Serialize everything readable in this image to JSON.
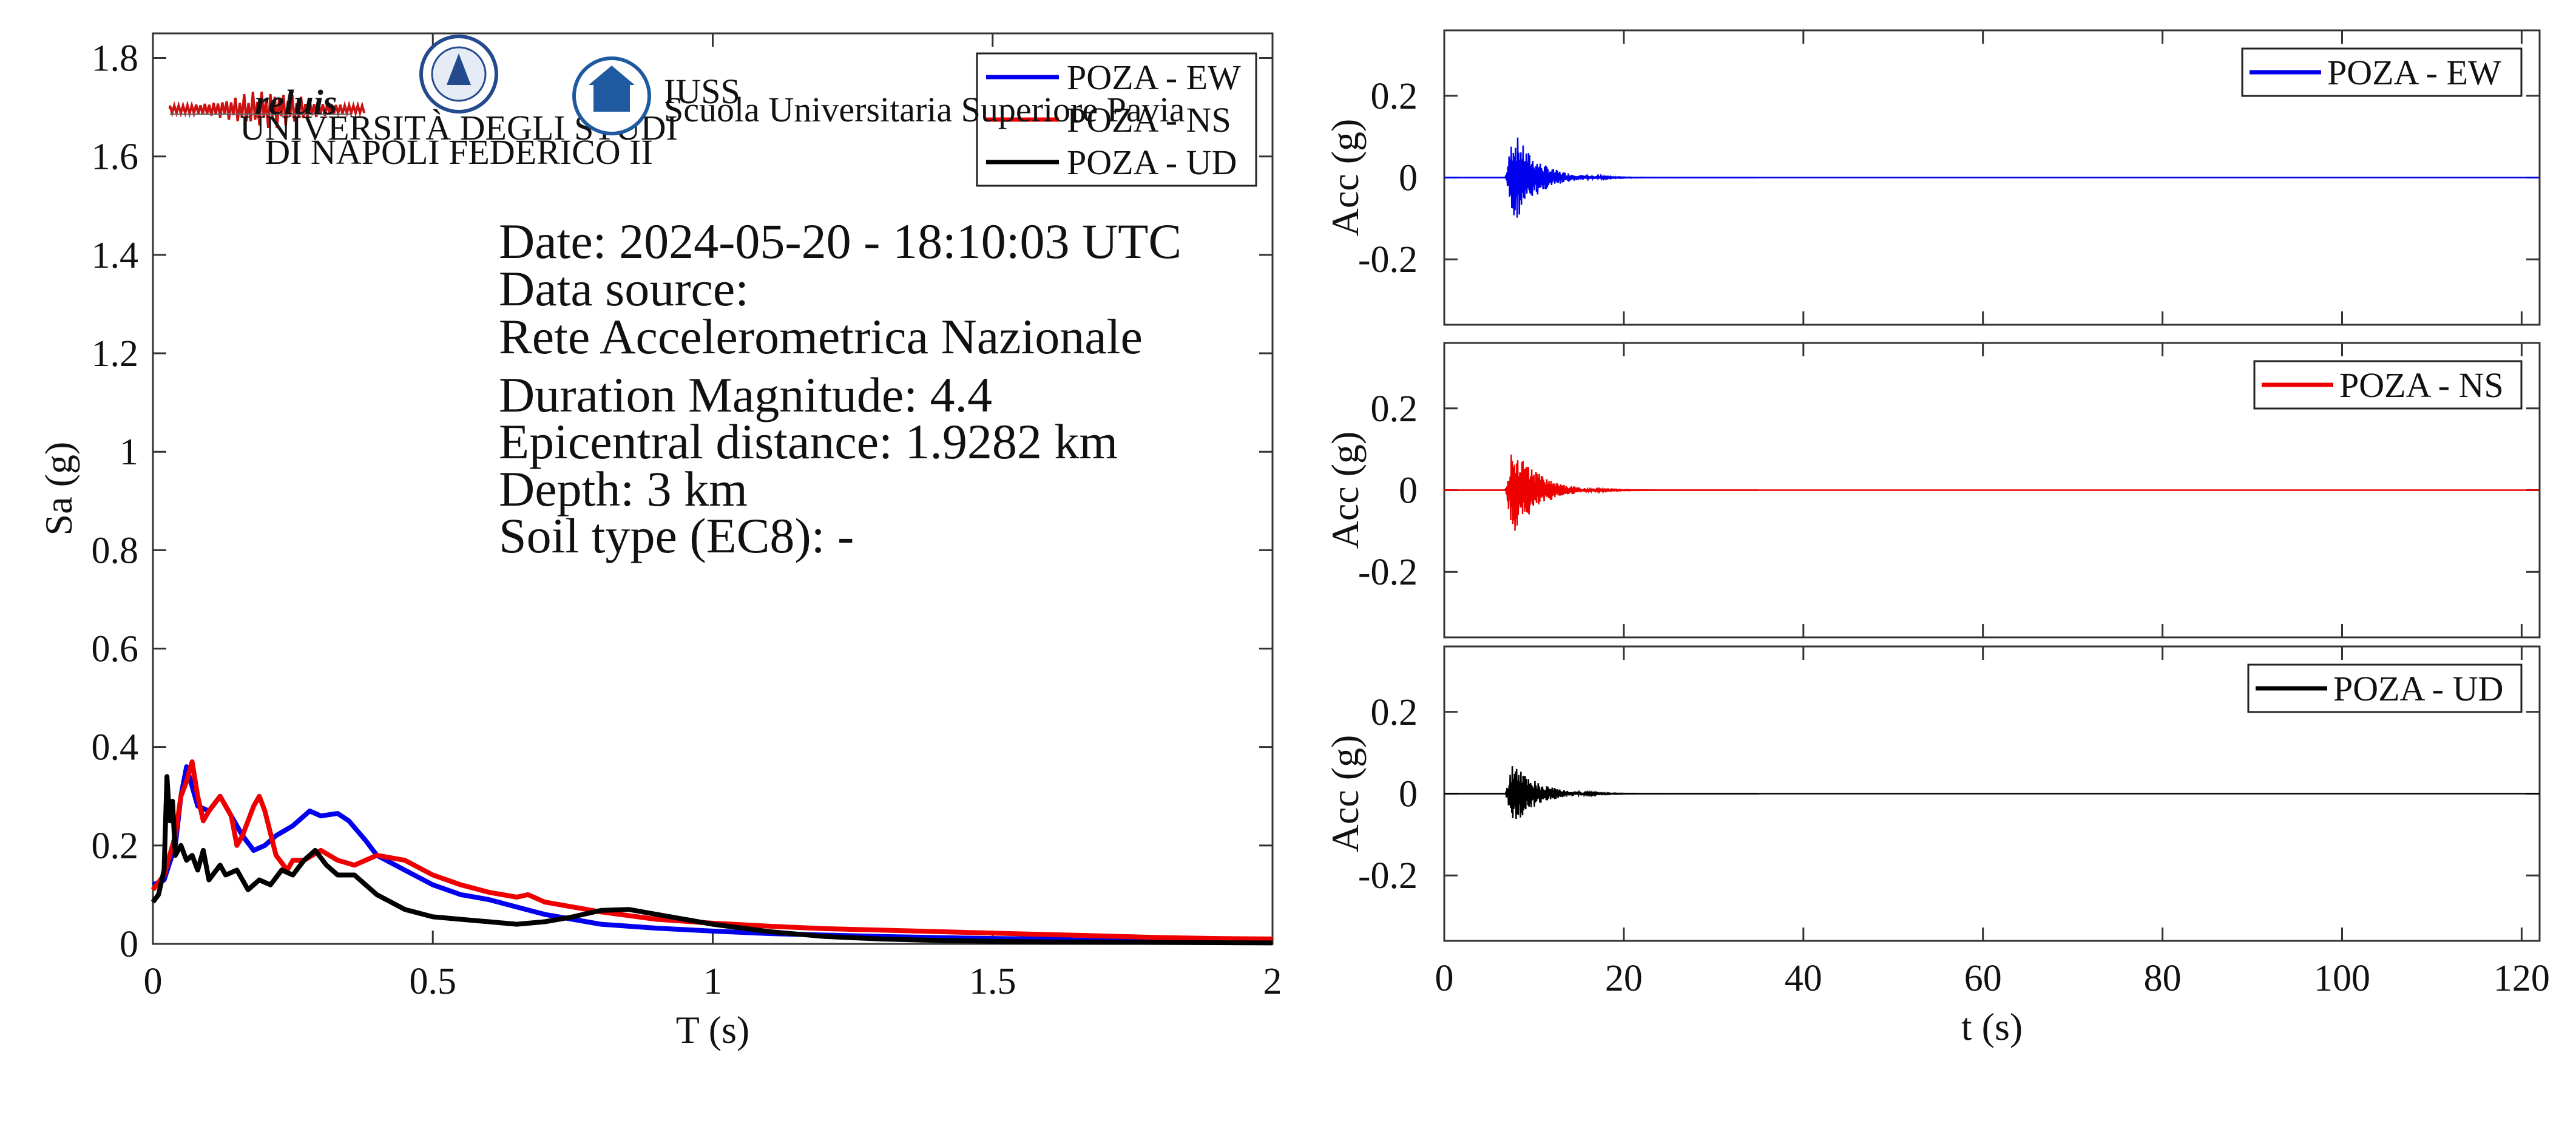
{
  "logos": {
    "reluis": "reluis",
    "unina_line1": "UNIVERSITÀ DEGLI STUDI",
    "unina_line2": "DI NAPOLI FEDERICO II",
    "iuss_title": "IUSS",
    "iuss_subtitle": "Scuola Universitaria Superiore Pavia"
  },
  "info": {
    "date": "Date: 2024-05-20 - 18:10:03 UTC",
    "source_label": "Data source:",
    "source_name": "Rete Accelerometrica Nazionale",
    "magnitude": "Duration Magnitude: 4.4",
    "distance": "Epicentral distance: 1.9282 km",
    "depth": "Depth: 3 km",
    "soil": "Soil type (EC8): -"
  },
  "chart_data": [
    {
      "type": "line",
      "xlabel": "T (s)",
      "ylabel": "Sa (g)",
      "xlim": [
        0,
        2
      ],
      "ylim": [
        0,
        1.85
      ],
      "xticks": [
        0,
        0.5,
        1,
        1.5,
        2
      ],
      "xtick_labels": [
        "0",
        "0.5",
        "1",
        "1.5",
        "2"
      ],
      "yticks": [
        0,
        0.2,
        0.4,
        0.6,
        0.8,
        1,
        1.2,
        1.4,
        1.6,
        1.8
      ],
      "ytick_labels": [
        "0",
        "0.2",
        "0.4",
        "0.6",
        "0.8",
        "1",
        "1.2",
        "1.4",
        "1.6",
        "1.8"
      ],
      "legend_position": "top-right",
      "series": [
        {
          "name": "POZA - EW",
          "color": "#0000ee",
          "x": [
            0,
            0.02,
            0.04,
            0.05,
            0.06,
            0.07,
            0.08,
            0.1,
            0.12,
            0.14,
            0.16,
            0.18,
            0.2,
            0.22,
            0.25,
            0.28,
            0.3,
            0.33,
            0.35,
            0.38,
            0.4,
            0.45,
            0.5,
            0.55,
            0.6,
            0.65,
            0.7,
            0.75,
            0.8,
            0.9,
            1.0,
            1.1,
            1.2,
            1.3,
            1.4,
            1.5,
            1.6,
            1.7,
            1.8,
            1.9,
            2.0
          ],
          "y": [
            0.12,
            0.13,
            0.2,
            0.3,
            0.36,
            0.32,
            0.28,
            0.27,
            0.3,
            0.26,
            0.22,
            0.19,
            0.2,
            0.22,
            0.24,
            0.27,
            0.26,
            0.265,
            0.25,
            0.21,
            0.18,
            0.15,
            0.12,
            0.1,
            0.09,
            0.075,
            0.06,
            0.05,
            0.04,
            0.032,
            0.026,
            0.021,
            0.018,
            0.015,
            0.013,
            0.011,
            0.01,
            0.009,
            0.008,
            0.007,
            0.006
          ]
        },
        {
          "name": "POZA - NS",
          "color": "#ee0000",
          "x": [
            0,
            0.02,
            0.04,
            0.05,
            0.06,
            0.07,
            0.08,
            0.09,
            0.1,
            0.12,
            0.14,
            0.15,
            0.16,
            0.18,
            0.19,
            0.2,
            0.22,
            0.24,
            0.25,
            0.27,
            0.3,
            0.33,
            0.36,
            0.4,
            0.45,
            0.5,
            0.55,
            0.6,
            0.65,
            0.67,
            0.7,
            0.8,
            0.9,
            1.0,
            1.1,
            1.2,
            1.3,
            1.4,
            1.5,
            1.6,
            1.7,
            1.8,
            1.9,
            2.0
          ],
          "y": [
            0.11,
            0.14,
            0.22,
            0.3,
            0.33,
            0.37,
            0.3,
            0.25,
            0.27,
            0.3,
            0.26,
            0.2,
            0.22,
            0.28,
            0.3,
            0.27,
            0.18,
            0.15,
            0.17,
            0.17,
            0.19,
            0.17,
            0.16,
            0.18,
            0.17,
            0.14,
            0.12,
            0.105,
            0.095,
            0.1,
            0.085,
            0.065,
            0.05,
            0.042,
            0.036,
            0.031,
            0.028,
            0.025,
            0.022,
            0.019,
            0.016,
            0.013,
            0.011,
            0.01
          ]
        },
        {
          "name": "POZA - UD",
          "color": "#000000",
          "x": [
            0,
            0.01,
            0.02,
            0.025,
            0.03,
            0.035,
            0.04,
            0.05,
            0.06,
            0.07,
            0.08,
            0.09,
            0.1,
            0.12,
            0.13,
            0.15,
            0.17,
            0.19,
            0.21,
            0.23,
            0.25,
            0.27,
            0.29,
            0.31,
            0.33,
            0.36,
            0.4,
            0.45,
            0.5,
            0.55,
            0.6,
            0.65,
            0.7,
            0.75,
            0.8,
            0.85,
            0.9,
            1.0,
            1.1,
            1.2,
            1.3,
            1.4,
            1.5,
            1.6,
            1.8,
            2.0
          ],
          "y": [
            0.085,
            0.1,
            0.15,
            0.34,
            0.25,
            0.29,
            0.18,
            0.2,
            0.17,
            0.18,
            0.15,
            0.19,
            0.13,
            0.16,
            0.14,
            0.15,
            0.11,
            0.13,
            0.12,
            0.15,
            0.14,
            0.17,
            0.19,
            0.16,
            0.14,
            0.14,
            0.1,
            0.07,
            0.055,
            0.05,
            0.045,
            0.04,
            0.045,
            0.055,
            0.068,
            0.07,
            0.06,
            0.04,
            0.025,
            0.015,
            0.01,
            0.007,
            0.005,
            0.004,
            0.003,
            0.002
          ]
        }
      ]
    },
    {
      "type": "line",
      "xlabel": "",
      "ylabel": "Acc (g)",
      "xlim": [
        0,
        122
      ],
      "ylim": [
        -0.36,
        0.36
      ],
      "yticks": [
        -0.2,
        0,
        0.2
      ],
      "ytick_labels": [
        "-0.2",
        "0",
        "0.2"
      ],
      "legend_position": "top-right",
      "series": [
        {
          "name": "POZA - EW",
          "color": "#0000ee",
          "peak": 0.12,
          "onset": 6.8
        }
      ]
    },
    {
      "type": "line",
      "xlabel": "",
      "ylabel": "Acc (g)",
      "xlim": [
        0,
        122
      ],
      "ylim": [
        -0.36,
        0.36
      ],
      "yticks": [
        -0.2,
        0,
        0.2
      ],
      "ytick_labels": [
        "-0.2",
        "0",
        "0.2"
      ],
      "legend_position": "top-right",
      "series": [
        {
          "name": "POZA - NS",
          "color": "#ee0000",
          "peak": 0.12,
          "onset": 6.8
        }
      ]
    },
    {
      "type": "line",
      "xlabel": "t (s)",
      "ylabel": "Acc (g)",
      "xlim": [
        0,
        122
      ],
      "ylim": [
        -0.36,
        0.36
      ],
      "xticks": [
        0,
        20,
        40,
        60,
        80,
        100,
        120
      ],
      "xtick_labels": [
        "0",
        "20",
        "40",
        "60",
        "80",
        "100",
        "120"
      ],
      "yticks": [
        -0.2,
        0,
        0.2
      ],
      "ytick_labels": [
        "-0.2",
        "0",
        "0.2"
      ],
      "legend_position": "top-right",
      "series": [
        {
          "name": "POZA - UD",
          "color": "#000000",
          "peak": 0.08,
          "onset": 6.8
        }
      ]
    }
  ]
}
